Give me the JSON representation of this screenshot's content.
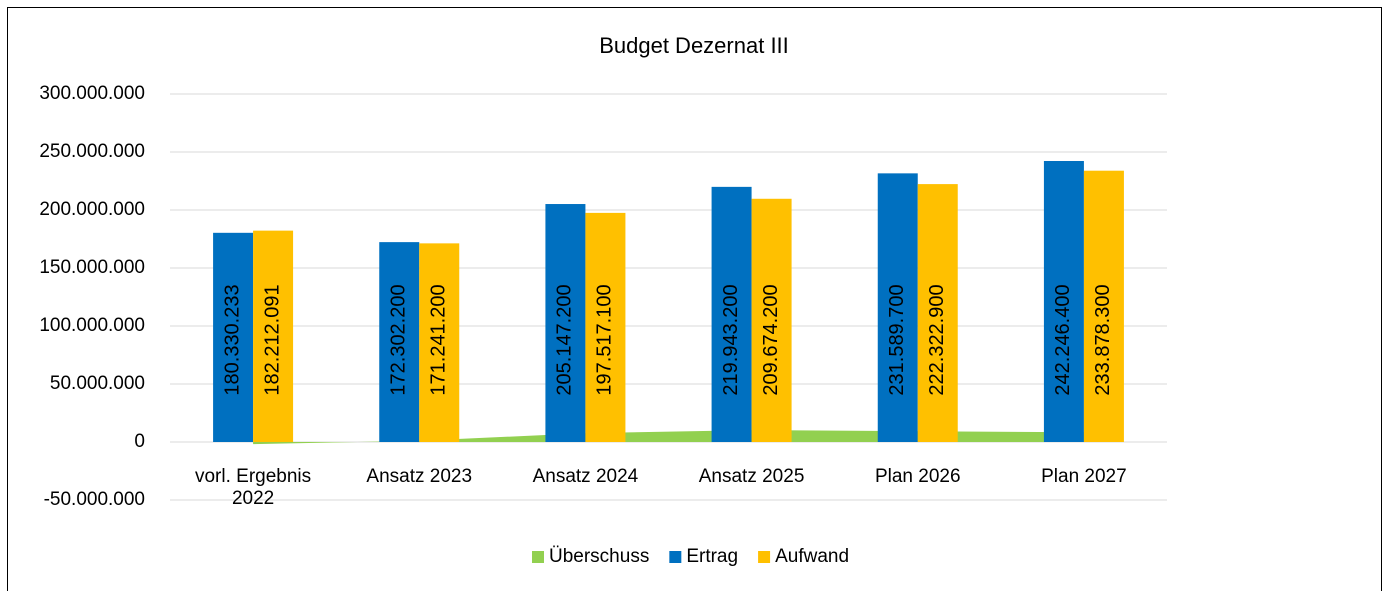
{
  "chart_data": {
    "type": "bar",
    "title": "Budget Dezernat III",
    "categories": [
      "vorl. Ergebnis 2022",
      "Ansatz 2023",
      "Ansatz 2024",
      "Ansatz 2025",
      "Plan 2026",
      "Plan 2027"
    ],
    "series": [
      {
        "name": "Überschuss",
        "color": "#92d050",
        "type": "area",
        "values": [
          -1881858,
          1061000,
          7630100,
          10269000,
          9266800,
          8368100
        ]
      },
      {
        "name": "Ertrag",
        "color": "#0070c0",
        "values": [
          180330233,
          172302200,
          205147200,
          219943200,
          231589700,
          242246400
        ],
        "value_labels": [
          "180.330.233",
          "172.302.200",
          "205.147.200",
          "219.943.200",
          "231.589.700",
          "242.246.400"
        ]
      },
      {
        "name": "Aufwand",
        "color": "#ffc000",
        "values": [
          182212091,
          171241200,
          197517100,
          209674200,
          222322900,
          233878300
        ],
        "value_labels": [
          "182.212.091",
          "171.241.200",
          "197.517.100",
          "209.674.200",
          "222.322.900",
          "233.878.300"
        ]
      }
    ],
    "ylim": [
      -50000000,
      300000000
    ],
    "yticks": [
      {
        "value": -50000000,
        "label": "-50.000.000"
      },
      0,
      {
        "value": 50000000,
        "label": "50.000.000"
      },
      {
        "value": 100000000,
        "label": "100.000.000"
      },
      {
        "value": 150000000,
        "label": "150.000.000"
      },
      {
        "value": 200000000,
        "label": "200.000.000"
      },
      {
        "value": 250000000,
        "label": "250.000.000"
      },
      {
        "value": 300000000,
        "label": "300.000.000"
      }
    ],
    "grid": true,
    "legend": "bottom"
  }
}
